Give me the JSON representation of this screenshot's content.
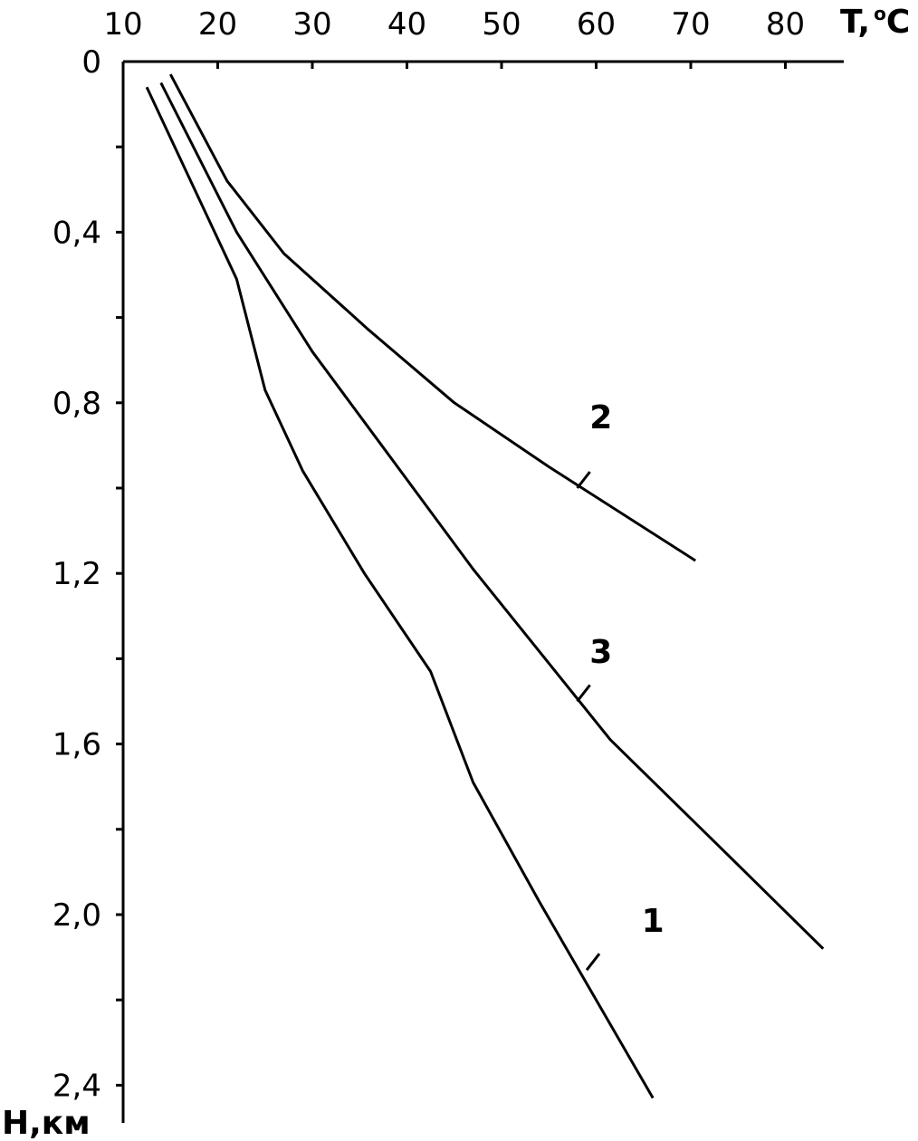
{
  "chart_data": {
    "type": "line",
    "title": "",
    "x_axis": {
      "label": "T, °C",
      "label_main": "T,",
      "label_sup": "o",
      "label_unit": "C",
      "position": "top",
      "range": [
        10,
        84
      ],
      "ticks": [
        10,
        20,
        30,
        40,
        50,
        60,
        70,
        80
      ],
      "tick_labels": [
        "10",
        "20",
        "30",
        "40",
        "50",
        "60",
        "70",
        "80"
      ]
    },
    "y_axis": {
      "label": "H,км",
      "inverted": true,
      "range": [
        0,
        2.5
      ],
      "major_ticks": [
        0,
        0.4,
        0.8,
        1.2,
        1.6,
        2.0,
        2.4
      ],
      "tick_labels": [
        "0",
        "0,4",
        "0,8",
        "1,2",
        "1,6",
        "2,0",
        "2,4"
      ],
      "minor_ticks": [
        0.2,
        0.6,
        1.0,
        1.4,
        1.8,
        2.2
      ]
    },
    "grid": false,
    "legend": "none",
    "series": [
      {
        "name": "1",
        "label_T": 66,
        "label_H": 2.04,
        "leader_T": 59,
        "leader_H": 2.13,
        "x": [
          12.5,
          22,
          25,
          29,
          35.5,
          42.5,
          47,
          54,
          66
        ],
        "y": [
          0.06,
          0.51,
          0.77,
          0.96,
          1.2,
          1.43,
          1.69,
          1.97,
          2.43
        ]
      },
      {
        "name": "2",
        "label_T": 60.5,
        "label_H": 0.86,
        "leader_T": 58,
        "leader_H": 1.0,
        "x": [
          15,
          21,
          27,
          36,
          45,
          55,
          70.5
        ],
        "y": [
          0.03,
          0.28,
          0.45,
          0.63,
          0.8,
          0.95,
          1.17
        ]
      },
      {
        "name": "3",
        "label_T": 60.5,
        "label_H": 1.41,
        "leader_T": 58,
        "leader_H": 1.5,
        "x": [
          14,
          22,
          30,
          38,
          47,
          61.5,
          73,
          84
        ],
        "y": [
          0.05,
          0.4,
          0.68,
          0.92,
          1.19,
          1.59,
          1.84,
          2.08
        ]
      }
    ]
  }
}
